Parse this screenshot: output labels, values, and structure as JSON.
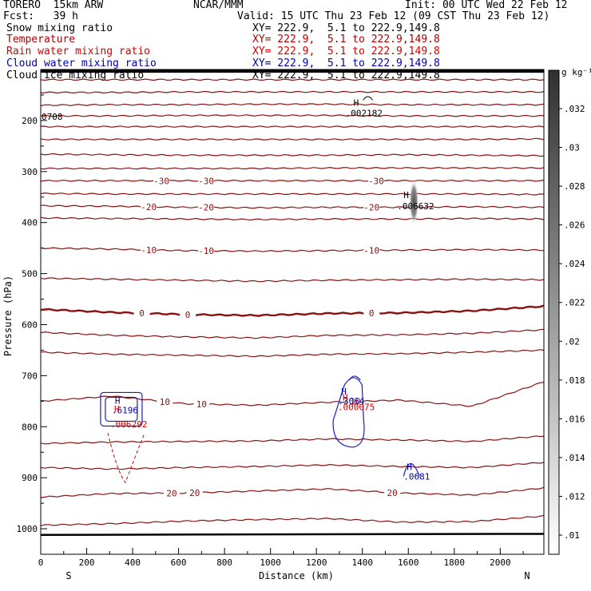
{
  "header": {
    "model": "TORERO  15km ARW",
    "org": "NCAR/MMM",
    "init": "Init: 00 UTC Wed 22 Feb 12",
    "fcst": "Fcst:   39 h",
    "valid": "Valid: 15 UTC Thu 23 Feb 12 (09 CST Thu 23 Feb 12)"
  },
  "fields": [
    {
      "name": "Snow mixing ratio",
      "xy": "XY= 222.9,  5.1 to 222.9,149.8",
      "color": "#000000"
    },
    {
      "name": "Temperature",
      "xy": "XY= 222.9,  5.1 to 222.9,149.8",
      "color": "#b00000"
    },
    {
      "name": "Rain water mixing ratio",
      "xy": "XY= 222.9,  5.1 to 222.9,149.8",
      "color": "#d40000"
    },
    {
      "name": "Cloud water mixing ratio",
      "xy": "XY= 222.9,  5.1 to 222.9,149.8",
      "color": "#0000b0"
    },
    {
      "name": "Cloud ice mixing ratio",
      "xy": "XY= 222.9,  5.1 to 222.9,149.8",
      "color": "#000000"
    }
  ],
  "chart_data": {
    "type": "cross-section",
    "xlabel": "Distance (km)",
    "ylabel": "Pressure (hPa)",
    "xlim": [
      0,
      2190
    ],
    "ylim": [
      1050,
      100
    ],
    "x_ticks": [
      0,
      200,
      400,
      600,
      800,
      1000,
      1200,
      1400,
      1600,
      1800,
      2000
    ],
    "y_ticks": [
      200,
      300,
      400,
      500,
      600,
      700,
      800,
      900,
      1000
    ],
    "endpoints": {
      "left": "S",
      "right": "N"
    },
    "colorbar": {
      "unit": "g kg⁻¹",
      "ticks": [
        ".01",
        ".012",
        ".014",
        ".016",
        ".018",
        ".02",
        ".022",
        ".024",
        ".026",
        ".028",
        ".03",
        ".032"
      ],
      "color_low": "#ffffff",
      "color_high": "#303030"
    },
    "temperature_contours": [
      {
        "p": [
          120,
          120,
          120,
          120,
          120,
          120,
          120,
          120
        ],
        "label": null
      },
      {
        "p": [
          145,
          145,
          144,
          144,
          144,
          144,
          144,
          144
        ],
        "label": null
      },
      {
        "p": [
          170,
          169,
          169,
          168,
          168,
          169,
          169,
          169
        ],
        "label": null
      },
      {
        "p": [
          191,
          191,
          190,
          190,
          190,
          191,
          191,
          191
        ],
        "label": null
      },
      {
        "p": [
          212,
          212,
          212,
          212,
          212,
          212,
          212,
          212
        ],
        "label": null
      },
      {
        "p": [
          237,
          237,
          237,
          237,
          237,
          237,
          237,
          236
        ],
        "label": null
      },
      {
        "p": [
          266,
          267,
          268,
          268,
          268,
          267,
          268,
          269
        ],
        "label": null
      },
      {
        "p": [
          294,
          294,
          294,
          294,
          293,
          293,
          293,
          293
        ],
        "label": null
      },
      {
        "p": [
          318,
          318,
          318,
          318,
          318,
          318,
          318,
          318
        ],
        "label": "-30",
        "labels_at": [
          525,
          720,
          1460
        ]
      },
      {
        "p": [
          343,
          344,
          344,
          344,
          344,
          344,
          344,
          345
        ],
        "label": null
      },
      {
        "p": [
          367,
          368,
          370,
          371,
          370,
          370,
          369,
          370
        ],
        "label": "-20",
        "labels_at": [
          470,
          720,
          1440
        ]
      },
      {
        "p": [
          391,
          392,
          393,
          394,
          393,
          393,
          392,
          393
        ],
        "label": null
      },
      {
        "p": [
          450,
          452,
          455,
          456,
          455,
          454,
          453,
          454
        ],
        "label": "-10",
        "labels_at": [
          470,
          720,
          1440
        ]
      },
      {
        "p": [
          509,
          511,
          513,
          515,
          513,
          512,
          511,
          512
        ],
        "label": null
      },
      {
        "p": [
          570,
          576,
          580,
          582,
          578,
          577,
          573,
          564
        ],
        "label": "0",
        "labels_at": [
          440,
          640,
          1440
        ],
        "bold": true
      },
      {
        "p": [
          615,
          621,
          624,
          626,
          621,
          620,
          617,
          610
        ],
        "label": null
      },
      {
        "p": [
          654,
          658,
          660,
          662,
          658,
          657,
          654,
          650
        ],
        "label": null
      },
      {
        "p": [
          750,
          740,
          755,
          758,
          752,
          748,
          760,
          712
        ],
        "label": "10",
        "labels_at": [
          540,
          700,
          1370
        ]
      },
      {
        "p": [
          833,
          830,
          829,
          828,
          824,
          826,
          829,
          818
        ],
        "label": null
      },
      {
        "p": [
          880,
          883,
          880,
          878,
          875,
          878,
          880,
          870
        ],
        "label": null
      },
      {
        "p": [
          938,
          931,
          930,
          926,
          922,
          930,
          934,
          920
        ],
        "label": "20",
        "labels_at": [
          570,
          670,
          1530
        ]
      },
      {
        "p": [
          993,
          990,
          985,
          982,
          980,
          987,
          986,
          975
        ],
        "label": null
      }
    ],
    "rain_water": [
      {
        "x": 320,
        "p": 781,
        "value": ".006292",
        "label": "H"
      }
    ],
    "cloud_water": [
      {
        "x": 330,
        "p": 758,
        "value": ".6196",
        "label": "H"
      },
      {
        "x": 1315,
        "p": 740,
        "value": ".3064",
        "label": "H"
      },
      {
        "x": 1600,
        "p": 888,
        "value": ".0681",
        "label": "H"
      }
    ],
    "cloud_ice": [
      {
        "x": 1390,
        "p": 758,
        "value": ".000075",
        "label": "H"
      }
    ],
    "snow": [
      {
        "x": 1600,
        "p": 360,
        "value": ".006632",
        "label": "H"
      }
    ],
    "other_extrema": [
      {
        "x": 1410,
        "p": 165,
        "value": ".002182",
        "label": "H"
      },
      {
        "x": 0,
        "p": 192,
        "value": "0708",
        "label": ""
      }
    ]
  }
}
